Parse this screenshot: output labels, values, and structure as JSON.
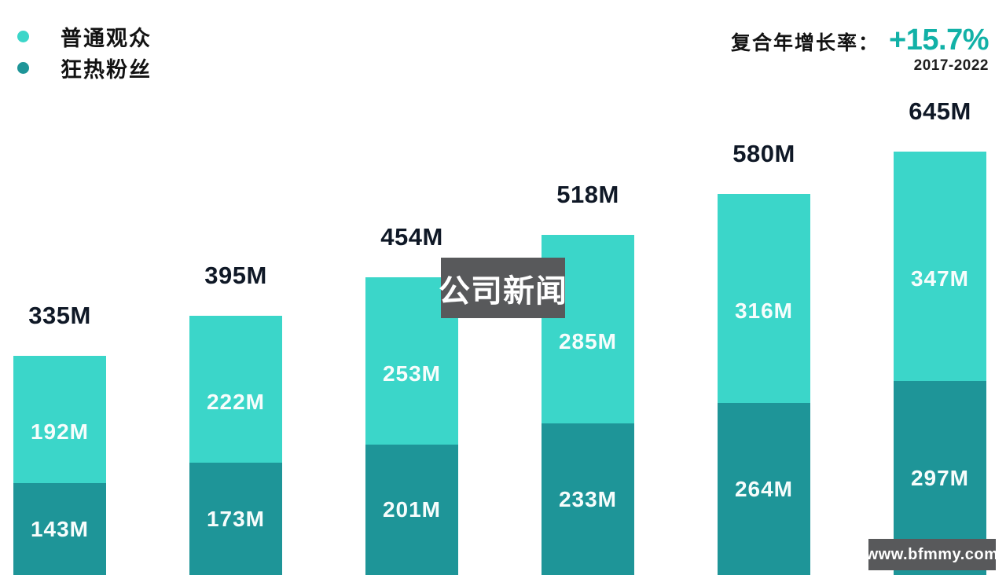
{
  "legend": {
    "items": [
      {
        "label": "普通观众",
        "color": "#3BD6C9"
      },
      {
        "label": "狂热粉丝",
        "color": "#1E9598"
      }
    ]
  },
  "cagr": {
    "label": "复合年增长率：",
    "value": "+15.7%",
    "value_color": "#12B1A7",
    "period": "2017-2022"
  },
  "overlay": {
    "text": "公司新闻",
    "background": "#58595B"
  },
  "watermark": {
    "text": "www.bfmmy.com",
    "background": "#58595B"
  },
  "chart_data": {
    "type": "bar",
    "stacked": true,
    "unit": "M",
    "x_axis_labels_visible": false,
    "legend_position": "top-left",
    "series": [
      {
        "name": "普通观众",
        "color": "#3BD6C9",
        "label_color": "#F7FDFC",
        "values": [
          192,
          222,
          253,
          285,
          316,
          347
        ],
        "labels": [
          "192M",
          "222M",
          "253M",
          "285M",
          "316M",
          "347M"
        ]
      },
      {
        "name": "狂热粉丝",
        "color": "#1E9598",
        "label_color": "#F7FDFC",
        "values": [
          143,
          173,
          201,
          233,
          264,
          297
        ],
        "labels": [
          "143M",
          "173M",
          "201M",
          "233M",
          "264M",
          "297M"
        ]
      }
    ],
    "totals": [
      335,
      395,
      454,
      518,
      580,
      645
    ],
    "total_labels": [
      "335M",
      "395M",
      "454M",
      "518M",
      "580M",
      "645M"
    ],
    "annotations": {
      "cagr_label": "复合年增长率：",
      "cagr_value": "+15.7%",
      "period": "2017-2022"
    }
  }
}
